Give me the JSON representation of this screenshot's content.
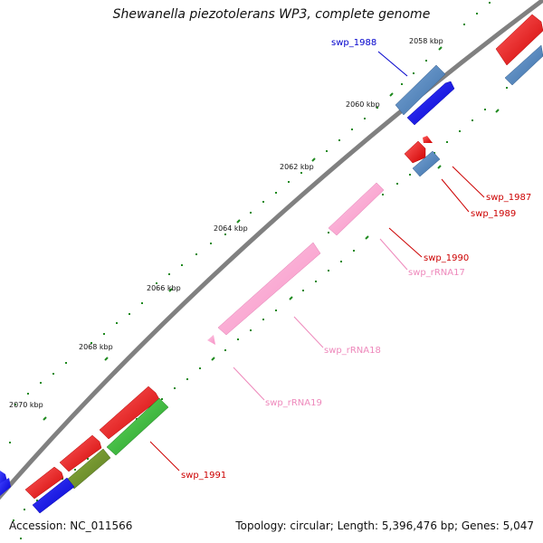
{
  "title": "Shewanella piezotolerans WP3, complete genome",
  "footer": {
    "accession": "Accession: NC_011566",
    "summary": "Topology: circular; Length: 5,396,476 bp; Genes: 5,047"
  },
  "ticks": [
    "2058 kbp",
    "2060 kbp",
    "2062 kbp",
    "2064 kbp",
    "2066 kbp",
    "2068 kbp",
    "2070 kbp"
  ],
  "labels": {
    "swp_1988": "swp_1988",
    "swp_1987": "swp_1987",
    "swp_1989": "swp_1989",
    "swp_1990": "swp_1990",
    "swp_rRNA17": "swp_rRNA17",
    "swp_rRNA18": "swp_rRNA18",
    "swp_rRNA19": "swp_rRNA19",
    "swp_1991": "swp_1991"
  },
  "colors": {
    "backbone": "#808080",
    "red": "#ff0000",
    "steel": "#4f86c0",
    "blue": "#0000ff",
    "pink": "#ffa0d0",
    "green": "#33bb33",
    "olive": "#6b8f2a",
    "dot": "#1f8a1f",
    "label_blue": "#0000cc",
    "label_red": "#cc0000",
    "label_pink": "#ee88bb"
  }
}
